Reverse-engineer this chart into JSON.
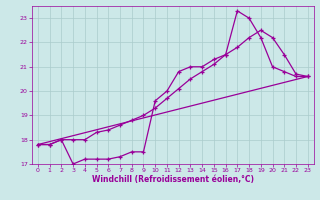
{
  "xlabel": "Windchill (Refroidissement éolien,°C)",
  "xlim": [
    -0.5,
    23.5
  ],
  "ylim": [
    17,
    23.5
  ],
  "xticks": [
    0,
    1,
    2,
    3,
    4,
    5,
    6,
    7,
    8,
    9,
    10,
    11,
    12,
    13,
    14,
    15,
    16,
    17,
    18,
    19,
    20,
    21,
    22,
    23
  ],
  "yticks": [
    17,
    18,
    19,
    20,
    21,
    22,
    23
  ],
  "bg_color": "#cce8e8",
  "grid_color": "#aacccc",
  "line_color": "#990099",
  "line_straight": {
    "x": [
      0,
      23
    ],
    "y": [
      17.8,
      20.6
    ]
  },
  "line_jagged": {
    "x": [
      0,
      1,
      2,
      3,
      4,
      5,
      6,
      7,
      8,
      9,
      10,
      11,
      12,
      13,
      14,
      15,
      16,
      17,
      18,
      19,
      20,
      21,
      22,
      23
    ],
    "y": [
      17.8,
      17.8,
      18.0,
      17.0,
      17.2,
      17.2,
      17.2,
      17.3,
      17.5,
      17.5,
      19.6,
      20.0,
      20.8,
      21.0,
      21.0,
      21.3,
      21.5,
      23.3,
      23.0,
      22.2,
      21.0,
      20.8,
      20.6,
      20.6
    ]
  },
  "line_smooth": {
    "x": [
      0,
      1,
      2,
      3,
      4,
      5,
      6,
      7,
      8,
      9,
      10,
      11,
      12,
      13,
      14,
      15,
      16,
      17,
      18,
      19,
      20,
      21,
      22,
      23
    ],
    "y": [
      17.8,
      17.8,
      18.0,
      18.0,
      18.0,
      18.3,
      18.4,
      18.6,
      18.8,
      19.0,
      19.3,
      19.7,
      20.1,
      20.5,
      20.8,
      21.1,
      21.5,
      21.8,
      22.2,
      22.5,
      22.2,
      21.5,
      20.7,
      20.6
    ]
  }
}
